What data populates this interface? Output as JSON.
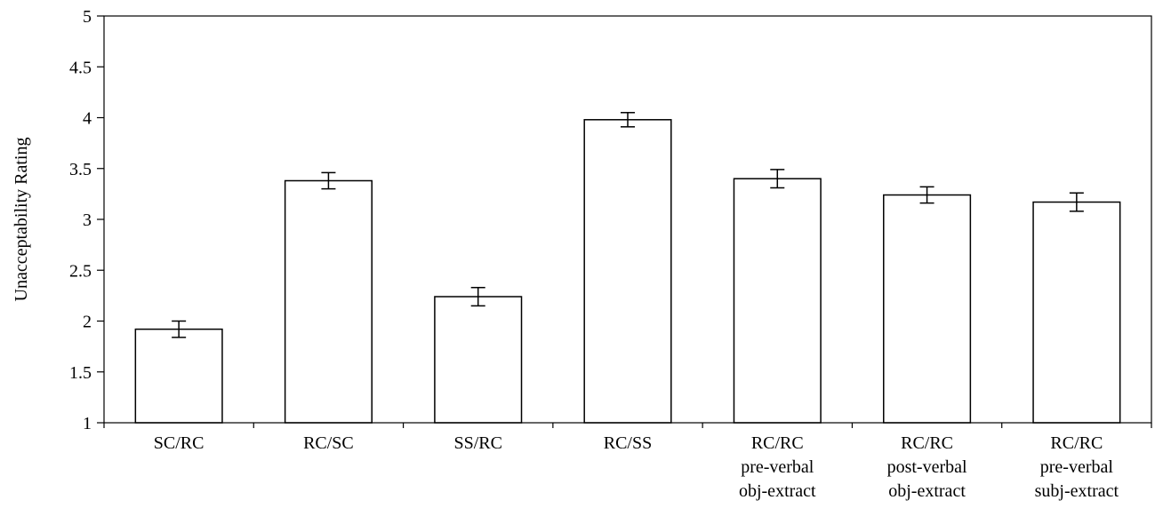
{
  "chart_data": {
    "type": "bar",
    "title": "",
    "xlabel": "",
    "ylabel": "Unacceptability Rating",
    "ylim": [
      1,
      5
    ],
    "yticks": [
      "1",
      "1.5",
      "2",
      "2.5",
      "3",
      "3.5",
      "4",
      "4.5",
      "5"
    ],
    "grid": false,
    "legend": "none",
    "bar_fill": "#ffffff",
    "bar_stroke": "#000000",
    "categories": [
      [
        "SC/RC"
      ],
      [
        "RC/SC"
      ],
      [
        "SS/RC"
      ],
      [
        "RC/SS"
      ],
      [
        "RC/RC",
        "pre-verbal",
        "obj-extract"
      ],
      [
        "RC/RC",
        "post-verbal",
        "obj-extract"
      ],
      [
        "RC/RC",
        "pre-verbal",
        "subj-extract"
      ]
    ],
    "values": [
      1.92,
      3.38,
      2.24,
      3.98,
      3.4,
      3.24,
      3.17
    ],
    "error": [
      0.08,
      0.08,
      0.09,
      0.07,
      0.09,
      0.08,
      0.09
    ]
  }
}
